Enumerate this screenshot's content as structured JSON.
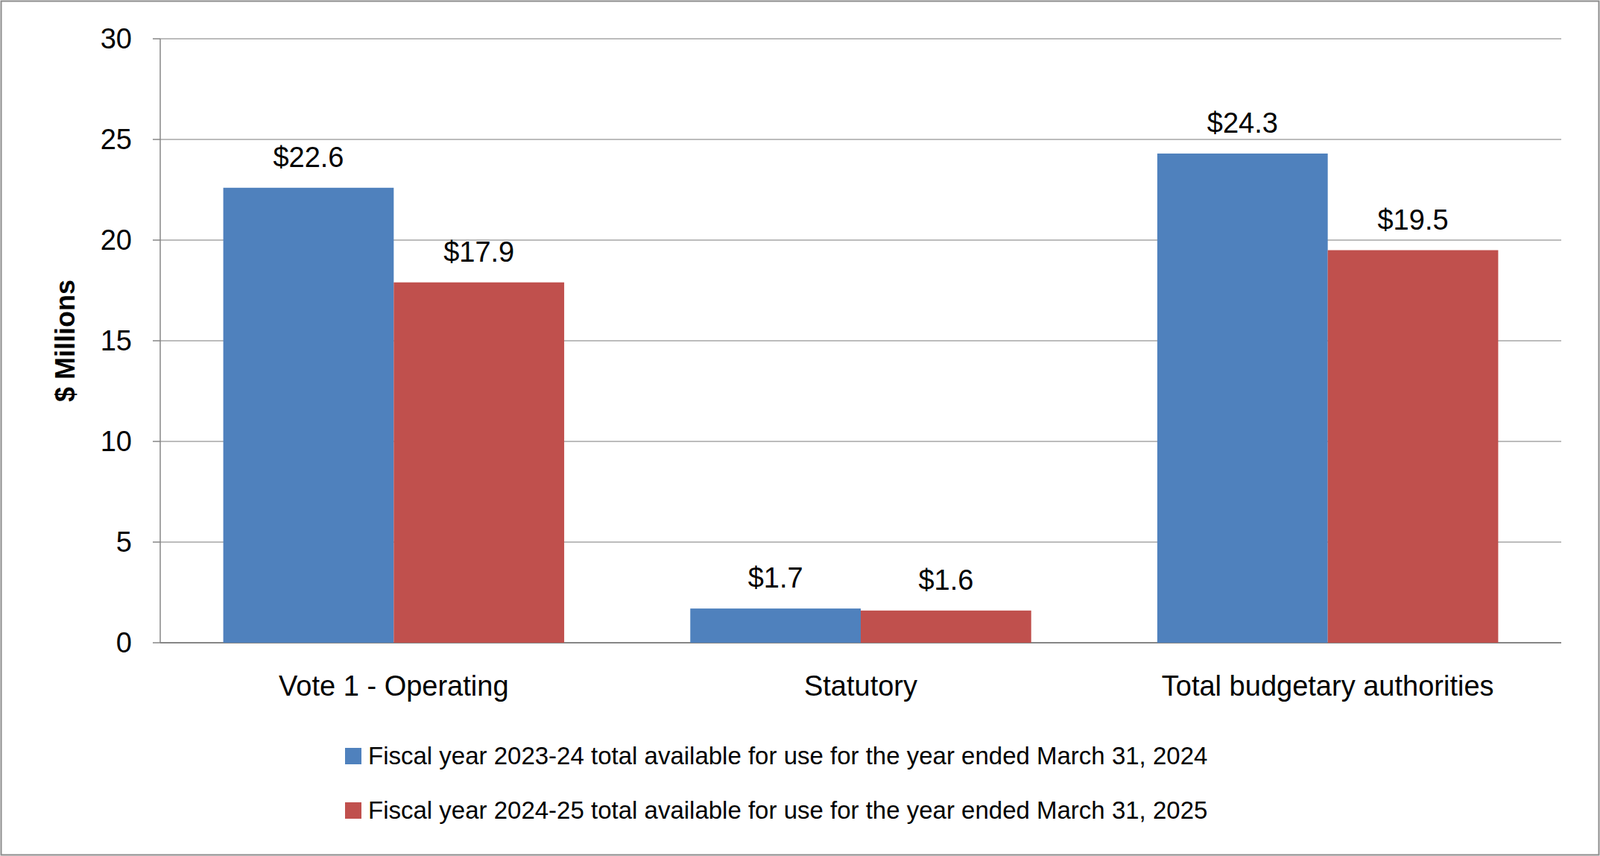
{
  "chart_data": {
    "type": "bar",
    "y_label": "$ Millions",
    "categories": [
      "Vote 1 - Operating",
      "Statutory",
      "Total budgetary authorities"
    ],
    "series": [
      {
        "name": "Fiscal year 2023-24 total available for use for the year ended March 31, 2024",
        "color": "#4f81bd",
        "values": [
          22.6,
          1.7,
          24.3
        ],
        "value_labels": [
          "$22.6",
          "$1.7",
          "$24.3"
        ]
      },
      {
        "name": "Fiscal year 2024-25 total available for use for the year ended March 31, 2025",
        "color": "#c0504d",
        "values": [
          17.9,
          1.6,
          19.5
        ],
        "value_labels": [
          "$17.9",
          "$1.6",
          "$19.5"
        ]
      }
    ],
    "ylim": [
      0,
      30
    ],
    "yticks": [
      0,
      5,
      10,
      15,
      20,
      25,
      30
    ],
    "grid": true,
    "legend": "bottom",
    "data_labels": true
  }
}
